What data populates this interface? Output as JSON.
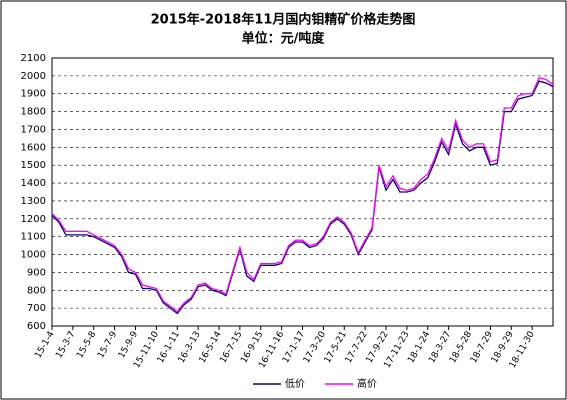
{
  "chart_data": {
    "type": "line",
    "title": "2015年-2018年11月国内钼精矿价格走势图",
    "subtitle": "单位：元/吨度",
    "categories": [
      "15-1-4",
      null,
      null,
      "15-3-7",
      null,
      null,
      "15-5-8",
      null,
      null,
      "15-7-9",
      null,
      null,
      "15-9-9",
      null,
      null,
      "15-11-10",
      null,
      null,
      "16-1-11",
      null,
      null,
      "16-3-13",
      null,
      null,
      "16-5-14",
      null,
      null,
      "16-7-15",
      null,
      null,
      "16-9-15",
      null,
      null,
      "16-11-16",
      null,
      null,
      "17-1-17",
      null,
      null,
      "17-3-20",
      null,
      null,
      "17-5-21",
      null,
      null,
      "17-7-22",
      null,
      null,
      "17-9-22",
      null,
      null,
      "17-11-23",
      null,
      null,
      "18-1-24",
      null,
      null,
      "18-3-27",
      null,
      null,
      "18-5-28",
      null,
      null,
      "18-7-29",
      null,
      null,
      "18-9-29",
      null,
      null,
      "18-11-30",
      null,
      null,
      null
    ],
    "series": [
      {
        "name": "低价",
        "color": "#000080",
        "values": [
          1220,
          1180,
          1110,
          1110,
          1110,
          1110,
          1100,
          1080,
          1060,
          1040,
          990,
          900,
          890,
          810,
          810,
          800,
          730,
          700,
          670,
          720,
          750,
          820,
          830,
          800,
          790,
          770,
          900,
          1030,
          880,
          850,
          940,
          940,
          940,
          950,
          1040,
          1070,
          1070,
          1040,
          1050,
          1090,
          1170,
          1200,
          1170,
          1110,
          1000,
          1070,
          1140,
          1490,
          1360,
          1420,
          1350,
          1350,
          1360,
          1400,
          1430,
          1520,
          1630,
          1560,
          1730,
          1620,
          1580,
          1600,
          1600,
          1500,
          1510,
          1800,
          1800,
          1870,
          1880,
          1890,
          1970,
          1960,
          1940
        ]
      },
      {
        "name": "高价",
        "color": "#ff00ff",
        "values": [
          1230,
          1190,
          1130,
          1130,
          1130,
          1130,
          1110,
          1090,
          1070,
          1050,
          1000,
          920,
          900,
          830,
          820,
          810,
          740,
          710,
          680,
          730,
          760,
          830,
          840,
          810,
          800,
          780,
          910,
          1040,
          900,
          860,
          950,
          950,
          950,
          960,
          1050,
          1080,
          1080,
          1050,
          1060,
          1100,
          1180,
          1210,
          1180,
          1120,
          1010,
          1080,
          1150,
          1500,
          1380,
          1440,
          1370,
          1360,
          1370,
          1420,
          1450,
          1540,
          1650,
          1580,
          1750,
          1640,
          1600,
          1620,
          1620,
          1520,
          1530,
          1820,
          1820,
          1890,
          1900,
          1900,
          1990,
          1980,
          1950
        ]
      }
    ],
    "ylim": [
      600,
      2100
    ],
    "yticks": [
      600,
      700,
      800,
      900,
      1000,
      1100,
      1200,
      1300,
      1400,
      1500,
      1600,
      1700,
      1800,
      1900,
      2000,
      2100
    ],
    "grid": true
  }
}
